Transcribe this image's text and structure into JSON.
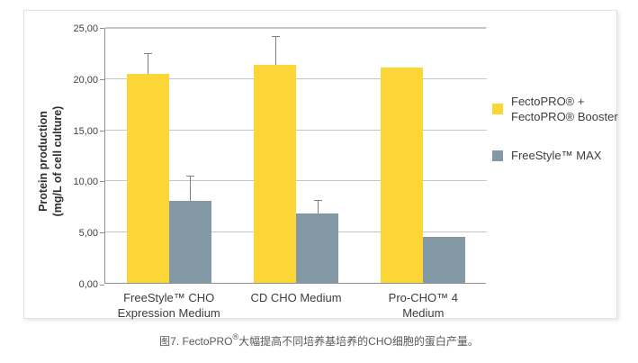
{
  "chart_data": {
    "type": "bar",
    "title": "",
    "ylabel_line1": "Protein production",
    "ylabel_line2": "(mg/L of cell culture)",
    "xlabel": "",
    "ylim": [
      0,
      25
    ],
    "ytick_step": 5,
    "ytick_labels": [
      "0,00",
      "5,00",
      "10,00",
      "15,00",
      "20,00",
      "25,00"
    ],
    "grid": true,
    "legend_position": "right",
    "categories": [
      [
        "FreeStyle™ CHO",
        "Expression Medium"
      ],
      [
        "CD CHO Medium"
      ],
      [
        "Pro-CHO™ 4",
        "Medium"
      ]
    ],
    "series": [
      {
        "name": "FectoPRO® + FectoPRO® Booster",
        "color": "#FCD537",
        "values": [
          20.4,
          21.3,
          21.0
        ],
        "errors_plus": [
          2.0,
          2.7,
          0
        ]
      },
      {
        "name": "FreeStyle™ MAX",
        "color": "#8399A6",
        "values": [
          8.0,
          6.8,
          4.5
        ],
        "errors_plus": [
          2.4,
          1.2,
          0
        ]
      }
    ]
  },
  "legend": {
    "items": [
      {
        "color": "#FCD537",
        "label_lines": [
          "FectoPRO® +",
          "FectoPRO® Booster"
        ]
      },
      {
        "color": "#8399A6",
        "label_lines": [
          "FreeStyle™ MAX"
        ]
      }
    ]
  },
  "caption": {
    "prefix": "图7. FectoPRO",
    "sup": "®",
    "suffix": "大幅提高不同培养基培养的CHO细胞的蛋白产量。"
  }
}
